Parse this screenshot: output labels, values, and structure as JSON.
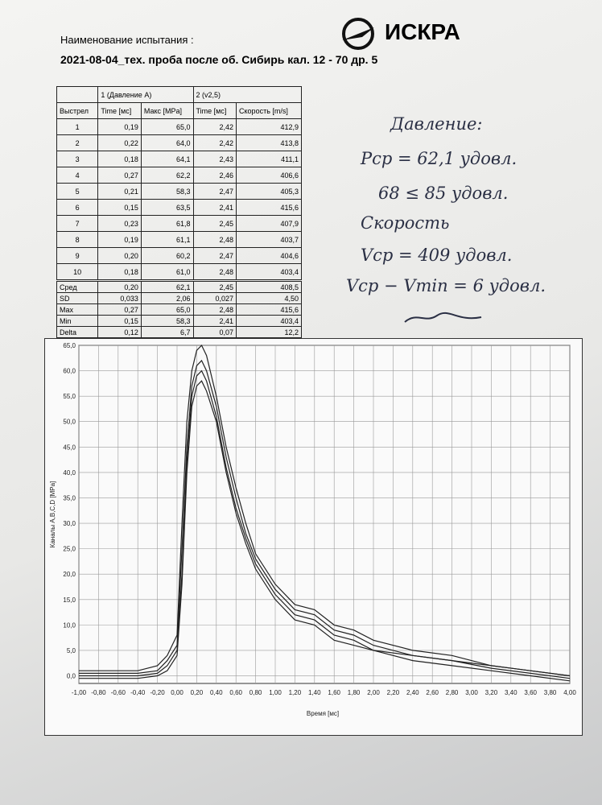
{
  "header": {
    "label": "Наименование испытания :",
    "title": "2021-08-04_тех. проба после об. Сибирь кал. 12 - 70 др. 5",
    "logo": "ИСКРА"
  },
  "table": {
    "groups": [
      "1 (Давление A)",
      "2 (v2,5)"
    ],
    "columns": [
      "Выстрел",
      "Time [мс]",
      "Макс [MPa]",
      "Time [мс]",
      "Скорость [m/s]"
    ],
    "rows": [
      [
        "1",
        "0,19",
        "65,0",
        "2,42",
        "412,9"
      ],
      [
        "2",
        "0,22",
        "64,0",
        "2,42",
        "413,8"
      ],
      [
        "3",
        "0,18",
        "64,1",
        "2,43",
        "411,1"
      ],
      [
        "4",
        "0,27",
        "62,2",
        "2,46",
        "406,6"
      ],
      [
        "5",
        "0,21",
        "58,3",
        "2,47",
        "405,3"
      ],
      [
        "6",
        "0,15",
        "63,5",
        "2,41",
        "415,6"
      ],
      [
        "7",
        "0,23",
        "61,8",
        "2,45",
        "407,9"
      ],
      [
        "8",
        "0,19",
        "61,1",
        "2,48",
        "403,7"
      ],
      [
        "9",
        "0,20",
        "60,2",
        "2,47",
        "404,6"
      ],
      [
        "10",
        "0,18",
        "61,0",
        "2,48",
        "403,4"
      ]
    ],
    "stats": [
      [
        "Сред",
        "0,20",
        "62,1",
        "2,45",
        "408,5"
      ],
      [
        "SD",
        "0,033",
        "2,06",
        "0,027",
        "4,50"
      ],
      [
        "Max",
        "0,27",
        "65,0",
        "2,48",
        "415,6"
      ],
      [
        "Min",
        "0,15",
        "58,3",
        "2,41",
        "403,4"
      ],
      [
        "Delta",
        "0,12",
        "6,7",
        "0,07",
        "12,2"
      ]
    ]
  },
  "notes": [
    "Давление:",
    "Pср = 62,1 удовл.",
    "68 ≤ 85 удовл.",
    "Скорость",
    "Vср = 409 удовл.",
    "Vср − Vmin = 6 удовл."
  ],
  "chart": {
    "type": "line",
    "x_label": "Время [мс]",
    "y_label": "Каналы A,B,C,D [MPa]",
    "grid": true,
    "color": "#222",
    "xlim": [
      -1,
      4
    ],
    "ylim": [
      -1.5,
      65
    ],
    "xticks": [
      {
        "value": -1,
        "label": "-1,00"
      },
      {
        "value": -0.8,
        "label": "-0,80"
      },
      {
        "value": -0.6,
        "label": "-0,60"
      },
      {
        "value": -0.4,
        "label": "-0,40"
      },
      {
        "value": -0.2,
        "label": "-0,20"
      },
      {
        "value": 0,
        "label": "0,00"
      },
      {
        "value": 0.2,
        "label": "0,20"
      },
      {
        "value": 0.4,
        "label": "0,40"
      },
      {
        "value": 0.6,
        "label": "0,60"
      },
      {
        "value": 0.8,
        "label": "0,80"
      },
      {
        "value": 1,
        "label": "1,00"
      },
      {
        "value": 1.2,
        "label": "1,20"
      },
      {
        "value": 1.4,
        "label": "1,40"
      },
      {
        "value": 1.6,
        "label": "1,60"
      },
      {
        "value": 1.8,
        "label": "1,80"
      },
      {
        "value": 2,
        "label": "2,00"
      },
      {
        "value": 2.2,
        "label": "2,20"
      },
      {
        "value": 2.4,
        "label": "2,40"
      },
      {
        "value": 2.6,
        "label": "2,60"
      },
      {
        "value": 2.8,
        "label": "2,80"
      },
      {
        "value": 3,
        "label": "3,00"
      },
      {
        "value": 3.2,
        "label": "3,20"
      },
      {
        "value": 3.4,
        "label": "3,40"
      },
      {
        "value": 3.6,
        "label": "3,60"
      },
      {
        "value": 3.8,
        "label": "3,80"
      },
      {
        "value": 4,
        "label": "4,00"
      }
    ],
    "yticks": [
      {
        "value": 0,
        "label": "0,0"
      },
      {
        "value": 5,
        "label": "5,0"
      },
      {
        "value": 10,
        "label": "10,0"
      },
      {
        "value": 15,
        "label": "15,0"
      },
      {
        "value": 20,
        "label": "20,0"
      },
      {
        "value": 25,
        "label": "25,0"
      },
      {
        "value": 30,
        "label": "30,0"
      },
      {
        "value": 35,
        "label": "35,0"
      },
      {
        "value": 40,
        "label": "40,0"
      },
      {
        "value": 45,
        "label": "45,0"
      },
      {
        "value": 50,
        "label": "50,0"
      },
      {
        "value": 55,
        "label": "55,0"
      },
      {
        "value": 60,
        "label": "60,0"
      },
      {
        "value": 65,
        "label": "65,0"
      }
    ],
    "x": [
      -1,
      -0.4,
      -0.2,
      -0.1,
      0,
      0.05,
      0.1,
      0.15,
      0.2,
      0.25,
      0.3,
      0.4,
      0.5,
      0.6,
      0.7,
      0.8,
      1,
      1.2,
      1.4,
      1.6,
      1.8,
      2,
      2.4,
      2.8,
      3.2,
      3.6,
      4
    ],
    "series": [
      {
        "values": [
          1,
          1,
          2,
          4,
          8,
          30,
          50,
          60,
          64,
          65,
          63,
          55,
          45,
          37,
          30,
          24,
          18,
          14,
          13,
          10,
          9,
          7,
          5,
          4,
          2,
          1,
          0
        ]
      },
      {
        "values": [
          0.5,
          0.5,
          1,
          3,
          6,
          25,
          45,
          57,
          61,
          62,
          60,
          53,
          43,
          35,
          28,
          23,
          17,
          13,
          12,
          9,
          8,
          6,
          4,
          3,
          2,
          1,
          0
        ]
      },
      {
        "values": [
          0,
          0,
          0.5,
          2,
          5,
          20,
          42,
          55,
          59,
          60,
          58,
          51,
          41,
          33,
          27,
          22,
          16,
          12,
          11,
          8,
          7,
          5,
          4,
          3,
          1.5,
          0.5,
          -0.5
        ]
      },
      {
        "values": [
          -0.5,
          -0.5,
          0,
          1,
          4,
          18,
          40,
          53,
          57,
          58,
          56,
          50,
          40,
          32,
          26,
          21,
          15,
          11,
          10,
          7,
          6,
          5,
          3,
          2,
          1,
          0,
          -1
        ]
      }
    ]
  }
}
